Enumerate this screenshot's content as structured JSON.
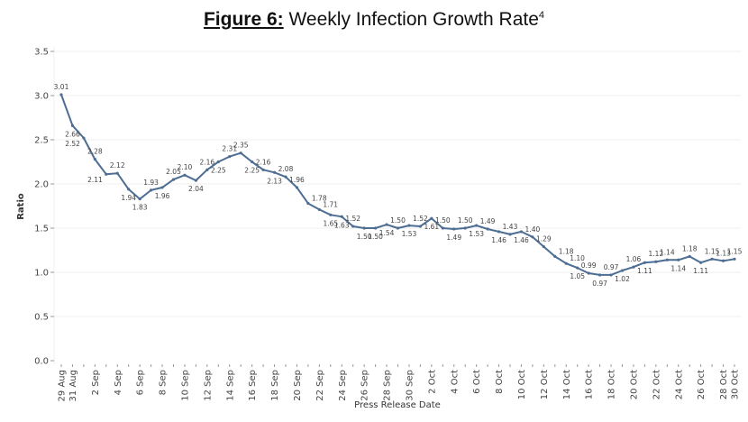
{
  "title": {
    "prefix": "Figure 6:",
    "text": " Weekly Infection Growth Rate",
    "superscript": "4"
  },
  "chart_data": {
    "type": "line",
    "title": "Figure 6: Weekly Infection Growth Rate",
    "xlabel": "Press Release Date",
    "ylabel": "Ratio",
    "ylim": [
      0,
      3.5
    ],
    "yticks": [
      "0.0",
      "0.5",
      "1.0",
      "1.5",
      "2.0",
      "2.5",
      "3.0",
      "3.5"
    ],
    "ytick_values": [
      0,
      0.5,
      1.0,
      1.5,
      2.0,
      2.5,
      3.0,
      3.5
    ],
    "grid": true,
    "legend": "none",
    "line_color": "#4e6d93",
    "x": [
      "29 Aug",
      "31 Aug",
      "1 Sep",
      "2 Sep",
      "3 Sep",
      "4 Sep",
      "5 Sep",
      "6 Sep",
      "7 Sep",
      "8 Sep",
      "9 Sep",
      "10 Sep",
      "11 Sep",
      "12 Sep",
      "13 Sep",
      "14 Sep",
      "15 Sep",
      "16 Sep",
      "17 Sep",
      "18 Sep",
      "19 Sep",
      "20 Sep",
      "21 Sep",
      "22 Sep",
      "23 Sep",
      "24 Sep",
      "25 Sep",
      "26 Sep",
      "27 Sep",
      "28 Sep",
      "29 Sep",
      "30 Sep",
      "1 Oct",
      "2 Oct",
      "3 Oct",
      "4 Oct",
      "5 Oct",
      "6 Oct",
      "7 Oct",
      "8 Oct",
      "9 Oct",
      "10 Oct",
      "11 Oct",
      "12 Oct",
      "13 Oct",
      "14 Oct",
      "15 Oct",
      "16 Oct",
      "17 Oct",
      "18 Oct",
      "19 Oct",
      "20 Oct",
      "21 Oct",
      "22 Oct",
      "23 Oct",
      "24 Oct",
      "25 Oct",
      "26 Oct",
      "27 Oct",
      "28 Oct",
      "30 Oct"
    ],
    "xtick_labels": [
      "29 Aug",
      "31 Aug",
      "2 Sep",
      "4 Sep",
      "6 Sep",
      "8 Sep",
      "10 Sep",
      "12 Sep",
      "14 Sep",
      "16 Sep",
      "18 Sep",
      "20 Sep",
      "22 Sep",
      "24 Sep",
      "26 Sep",
      "28 Sep",
      "30 Sep",
      "2 Oct",
      "4 Oct",
      "6 Oct",
      "8 Oct",
      "10 Oct",
      "12 Oct",
      "14 Oct",
      "16 Oct",
      "18 Oct",
      "20 Oct",
      "22 Oct",
      "24 Oct",
      "26 Oct",
      "28 Oct",
      "30 Oct"
    ],
    "series": [
      {
        "name": "Weekly Infection Growth Rate",
        "values": [
          3.01,
          2.66,
          2.52,
          2.28,
          2.11,
          2.12,
          1.94,
          1.83,
          1.93,
          1.96,
          2.05,
          2.1,
          2.04,
          2.16,
          2.25,
          2.31,
          2.35,
          2.25,
          2.16,
          2.13,
          2.08,
          1.96,
          1.78,
          1.71,
          1.65,
          1.63,
          1.52,
          1.5,
          1.5,
          1.54,
          1.5,
          1.53,
          1.52,
          1.61,
          1.5,
          1.49,
          1.5,
          1.53,
          1.49,
          1.46,
          1.43,
          1.46,
          1.4,
          1.29,
          1.18,
          1.1,
          1.05,
          0.99,
          0.97,
          0.97,
          1.02,
          1.06,
          1.11,
          1.12,
          1.14,
          1.14,
          1.18,
          1.11,
          1.15,
          1.13,
          1.15
        ],
        "labels": [
          "3.01",
          "2.66",
          "2.52",
          "2.28",
          "2.11",
          "2.12",
          "1.94",
          "1.83",
          "1.93",
          "1.96",
          "2.05",
          "2.10",
          "2.04",
          "2.16",
          "2.25",
          "2.31",
          "2.35",
          "2.25",
          "2.16",
          "2.13",
          "2.08",
          "1.96",
          "1.78",
          "1.71",
          "1.65",
          "1.63",
          "1.52",
          "1.50",
          "1.50",
          "1.54",
          "1.50",
          "1.53",
          "1.52",
          "1.61",
          "1.50",
          "1.49",
          "1.50",
          "1.53",
          "1.49",
          "1.46",
          "1.43",
          "1.46",
          "1.40",
          "1.29",
          "1.18",
          "1.10",
          "1.05",
          "0.99",
          "0.97",
          "0.97",
          "1.02",
          "1.06",
          "1.11",
          "1.12",
          "1.14",
          "1.14",
          "1.18",
          "1.11",
          "1.15",
          "1.13",
          "1.15"
        ]
      }
    ]
  }
}
